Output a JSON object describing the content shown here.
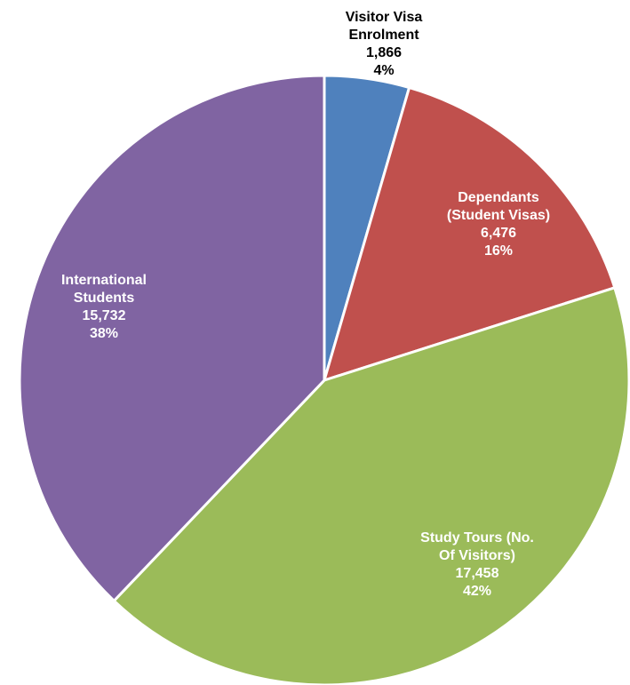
{
  "chart_data": {
    "type": "pie",
    "colors": [
      "#4F81BD",
      "#C0504D",
      "#9BBB59",
      "#8064A2"
    ],
    "slices": [
      {
        "label_lines": [
          "Visitor Visa",
          "Enrolment"
        ],
        "value": 1866,
        "value_label": "1,866",
        "percent_label": "4%",
        "color": "#4F81BD",
        "label_color": "#000000"
      },
      {
        "label_lines": [
          "Dependants",
          "(Student Visas)"
        ],
        "value": 6476,
        "value_label": "6,476",
        "percent_label": "16%",
        "color": "#C0504D",
        "label_color": "#ffffff"
      },
      {
        "label_lines": [
          "Study Tours (No.",
          "Of Visitors)"
        ],
        "value": 17458,
        "value_label": "17,458",
        "percent_label": "42%",
        "color": "#9BBB59",
        "label_color": "#ffffff"
      },
      {
        "label_lines": [
          "International",
          "Students"
        ],
        "value": 15732,
        "value_label": "15,732",
        "percent_label": "38%",
        "color": "#8064A2",
        "label_color": "#ffffff"
      }
    ],
    "start_angle_deg": 0,
    "direction": "clockwise",
    "legend": "none"
  }
}
